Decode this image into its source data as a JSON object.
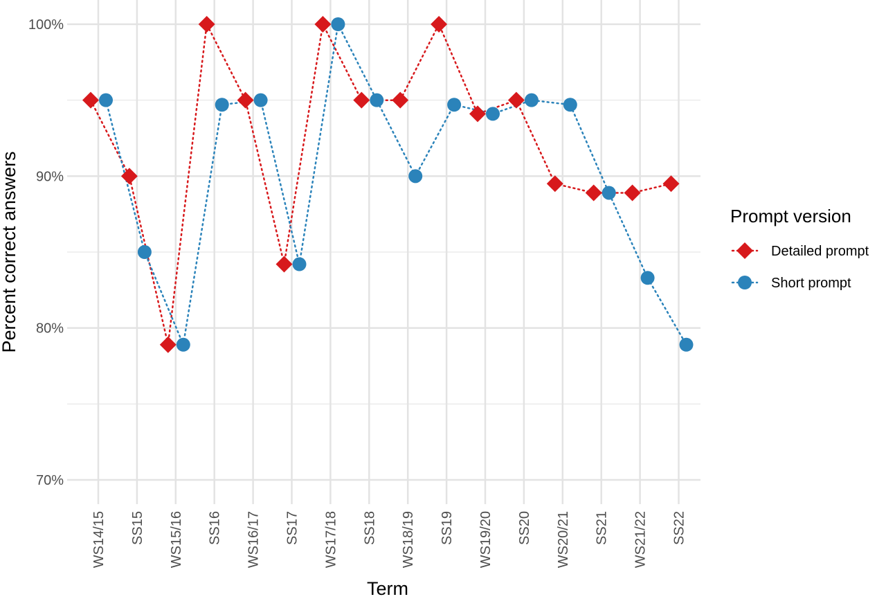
{
  "chart_data": {
    "type": "scatter",
    "xlabel": "Term",
    "ylabel": "Percent correct answers",
    "categories": [
      "WS14/15",
      "SS15",
      "WS15/16",
      "SS16",
      "WS16/17",
      "SS17",
      "WS17/18",
      "SS18",
      "WS18/19",
      "SS19",
      "WS19/20",
      "SS20",
      "WS20/21",
      "SS21",
      "WS21/22",
      "SS22"
    ],
    "y_ticks": [
      70,
      80,
      90,
      100
    ],
    "y_tick_labels": [
      "70%",
      "80%",
      "90%",
      "100%"
    ],
    "ylim": [
      68.2,
      101.6
    ],
    "grid": true,
    "connected": "dotted",
    "legend": {
      "title": "Prompt version",
      "position": "right"
    },
    "series": [
      {
        "name": "Detailed prompt",
        "marker": "diamond",
        "color": "#d7191c",
        "values": [
          95.0,
          90.0,
          78.9,
          100.0,
          95.0,
          84.2,
          100.0,
          95.0,
          95.0,
          100.0,
          94.1,
          95.0,
          89.5,
          88.9,
          88.9,
          89.5
        ]
      },
      {
        "name": "Short prompt",
        "marker": "circle",
        "color": "#2b83ba",
        "values": [
          95.0,
          85.0,
          78.9,
          94.7,
          95.0,
          84.2,
          100.0,
          95.0,
          90.0,
          94.7,
          94.1,
          95.0,
          94.7,
          88.9,
          83.3,
          78.9
        ]
      }
    ]
  }
}
